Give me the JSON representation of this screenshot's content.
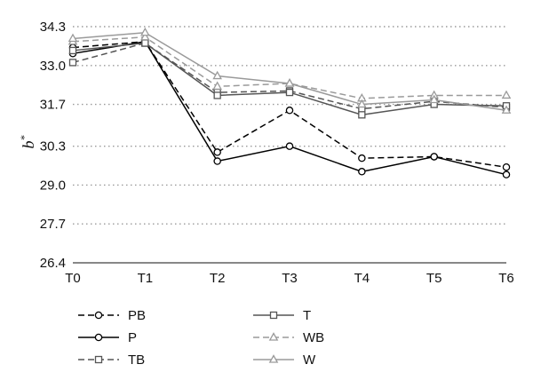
{
  "chart_data": {
    "type": "line",
    "ylabel": "b",
    "ylabel_superscript": "*",
    "categories": [
      "T0",
      "T1",
      "T2",
      "T3",
      "T4",
      "T5",
      "T6"
    ],
    "yticks": [
      26.4,
      27.7,
      29.0,
      30.3,
      31.7,
      33.0,
      34.3
    ],
    "ytick_labels": [
      "26.4",
      "27.7",
      "29.0",
      "30.3",
      "31.7",
      "33.0",
      "34.3"
    ],
    "ylim": [
      26.4,
      34.3
    ],
    "grid": "horizontal dotted",
    "legend_position": "bottom",
    "series": [
      {
        "name": "PB",
        "values": [
          33.6,
          33.8,
          30.1,
          31.5,
          29.9,
          29.95,
          29.6
        ],
        "color": "#000000",
        "dash": true,
        "marker": "circle"
      },
      {
        "name": "P",
        "values": [
          33.4,
          33.8,
          29.8,
          30.3,
          29.45,
          29.95,
          29.35
        ],
        "color": "#000000",
        "dash": false,
        "marker": "circle"
      },
      {
        "name": "TB",
        "values": [
          33.1,
          33.75,
          32.1,
          32.15,
          31.55,
          31.8,
          31.6
        ],
        "color": "#555555",
        "dash": true,
        "marker": "square"
      },
      {
        "name": "T",
        "values": [
          33.5,
          33.75,
          32.0,
          32.1,
          31.35,
          31.7,
          31.65
        ],
        "color": "#555555",
        "dash": false,
        "marker": "square"
      },
      {
        "name": "WB",
        "values": [
          33.8,
          33.95,
          32.3,
          32.4,
          31.9,
          32.0,
          32.0
        ],
        "color": "#9a9a9a",
        "dash": true,
        "marker": "triangle"
      },
      {
        "name": "W",
        "values": [
          33.9,
          34.1,
          32.65,
          32.4,
          31.7,
          31.85,
          31.5
        ],
        "color": "#9a9a9a",
        "dash": false,
        "marker": "triangle"
      }
    ]
  }
}
